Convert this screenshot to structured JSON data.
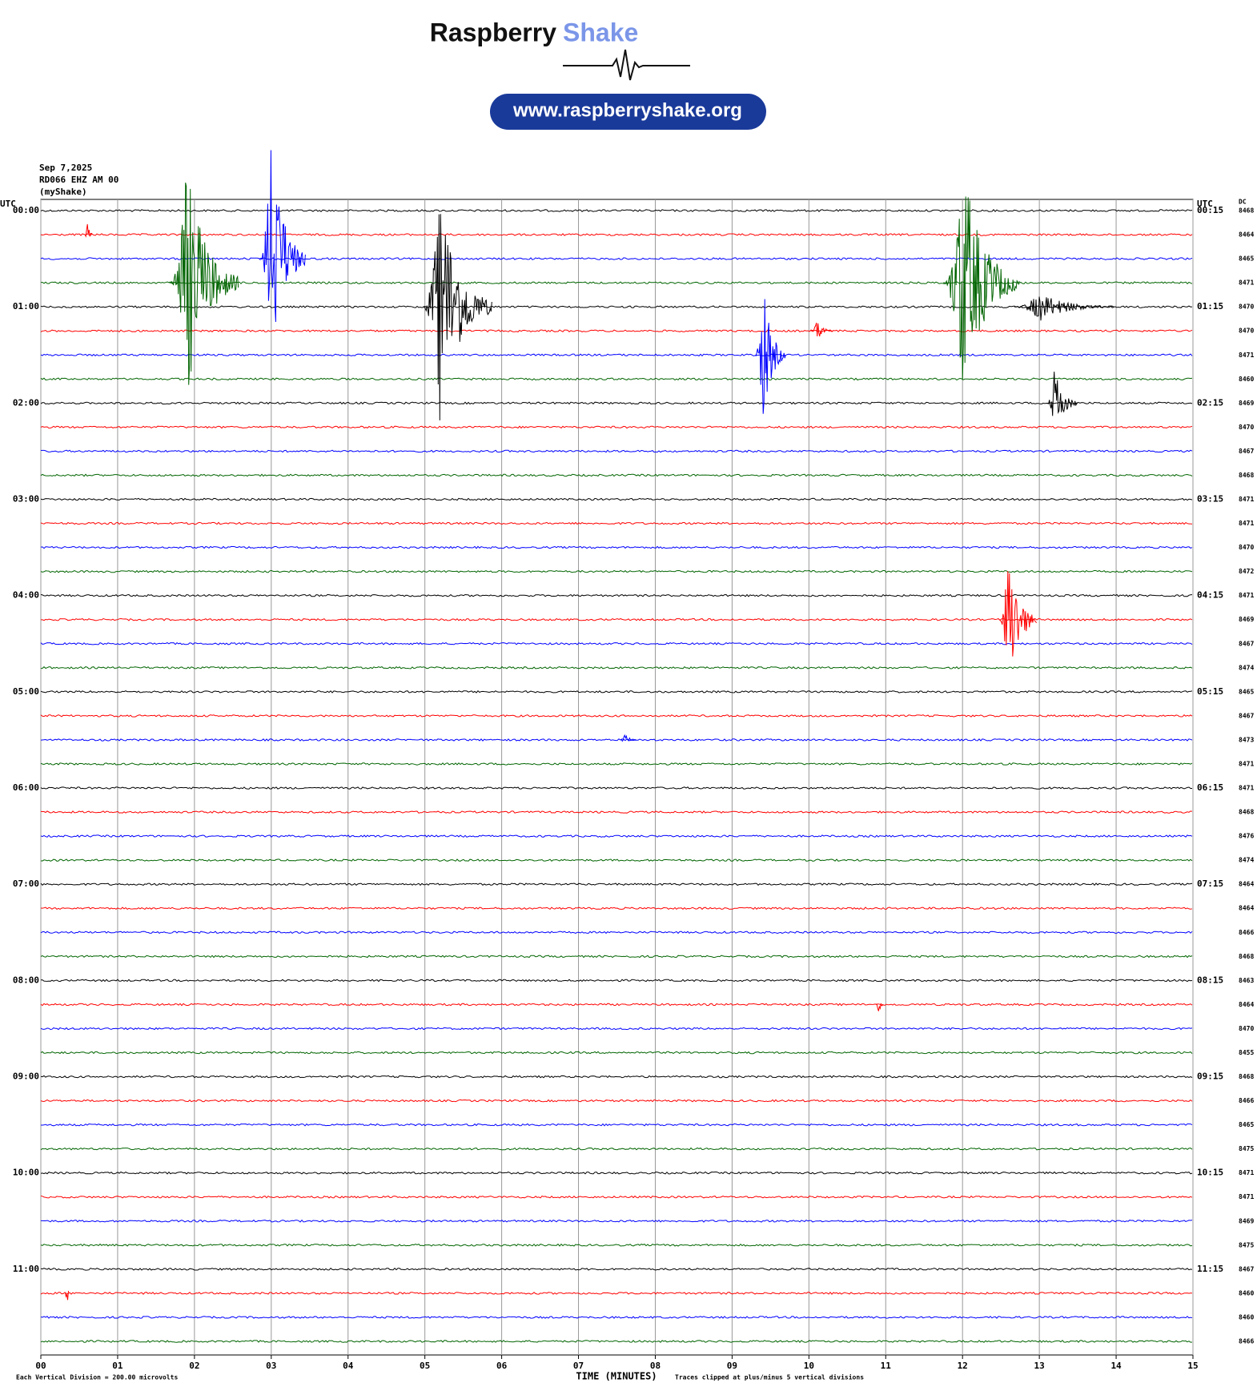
{
  "chart_data": {
    "type": "helicorder",
    "brand": {
      "name_dark": "Raspberry",
      "name_light": "Shake",
      "url": "www.raspberryshake.org"
    },
    "date": "Sep 7,2025",
    "station": "RD066 EHZ AM 00",
    "source": "(myShake)",
    "left_axis_title": "UTC",
    "right_axis_title": "UTC",
    "dc_title": "DC",
    "xlabel": "TIME (MINUTES)",
    "scale_note": "Each Vertical Division =  200.00 microvolts",
    "clip_note": "Traces clipped at plus/minus 5 vertical divisions",
    "colors": [
      "#000000",
      "#ff0000",
      "#0000ff",
      "#006400"
    ],
    "xlim": [
      0,
      15
    ],
    "xticks": [
      {
        "value": 0,
        "label": "00"
      },
      {
        "value": 1,
        "label": "01"
      },
      {
        "value": 2,
        "label": "02"
      },
      {
        "value": 3,
        "label": "03"
      },
      {
        "value": 4,
        "label": "04"
      },
      {
        "value": 5,
        "label": "05"
      },
      {
        "value": 6,
        "label": "06"
      },
      {
        "value": 7,
        "label": "07"
      },
      {
        "value": 8,
        "label": "08"
      },
      {
        "value": 9,
        "label": "09"
      },
      {
        "value": 10,
        "label": "10"
      },
      {
        "value": 11,
        "label": "11"
      },
      {
        "value": 12,
        "label": "12"
      },
      {
        "value": 13,
        "label": "13"
      },
      {
        "value": 14,
        "label": "14"
      },
      {
        "value": 15,
        "label": "15"
      }
    ],
    "hour_labels_left": [
      "00:00",
      "01:00",
      "02:00",
      "03:00",
      "04:00",
      "05:00",
      "06:00",
      "07:00",
      "08:00",
      "09:00",
      "10:00",
      "11:00"
    ],
    "hour_labels_right": [
      "00:15",
      "01:15",
      "02:15",
      "03:15",
      "04:15",
      "05:15",
      "06:15",
      "07:15",
      "08:15",
      "09:15",
      "10:15",
      "11:15"
    ],
    "dc": [
      8468,
      8464,
      8465,
      8471,
      8470,
      8470,
      8471,
      8460,
      8469,
      8470,
      8467,
      8468,
      8471,
      8471,
      8470,
      8472,
      8471,
      8469,
      8467,
      8474,
      8465,
      8467,
      8473,
      8471,
      8471,
      8468,
      8476,
      8474,
      8464,
      8464,
      8466,
      8468,
      8463,
      8464,
      8470,
      8455,
      8468,
      8466,
      8465,
      8475,
      8471,
      8471,
      8469,
      8475,
      8467,
      8460,
      8460,
      8466
    ],
    "events": [
      {
        "row": 3,
        "minute": 1.9,
        "duration": 0.9,
        "amplitude": 5
      },
      {
        "row": 2,
        "minute": 3.0,
        "duration": 0.6,
        "amplitude": 5
      },
      {
        "row": 4,
        "minute": 5.2,
        "duration": 0.9,
        "amplitude": 5
      },
      {
        "row": 3,
        "minute": 12.0,
        "duration": 1.0,
        "amplitude": 5
      },
      {
        "row": 6,
        "minute": 9.4,
        "duration": 0.4,
        "amplitude": 3
      },
      {
        "row": 8,
        "minute": 13.2,
        "duration": 0.4,
        "amplitude": 1.5
      },
      {
        "row": 17,
        "minute": 12.6,
        "duration": 0.5,
        "amplitude": 3
      },
      {
        "row": 45,
        "minute": 0.33,
        "duration": 0.05,
        "amplitude": 1.3
      },
      {
        "row": 5,
        "minute": 10.1,
        "duration": 0.3,
        "amplitude": 0.5
      },
      {
        "row": 1,
        "minute": 0.6,
        "duration": 0.1,
        "amplitude": 0.6
      },
      {
        "row": 4,
        "minute": 13.0,
        "duration": 1.3,
        "amplitude": 0.6
      },
      {
        "row": 22,
        "minute": 7.6,
        "duration": 0.2,
        "amplitude": 0.3
      },
      {
        "row": 33,
        "minute": 10.9,
        "duration": 0.1,
        "amplitude": 0.5
      }
    ]
  }
}
